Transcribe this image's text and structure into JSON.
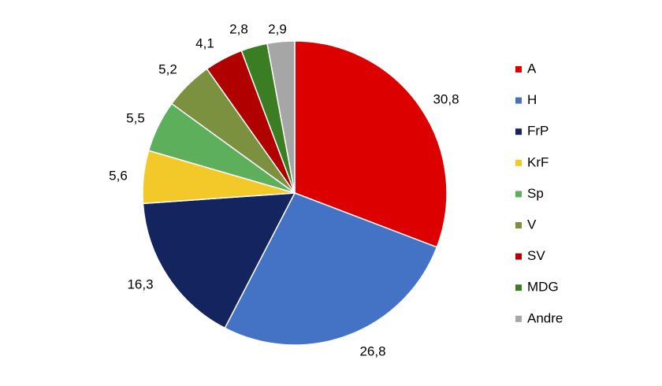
{
  "chart_data": {
    "type": "pie",
    "title": "",
    "start_angle": "12 o'clock, clockwise",
    "legend": "right",
    "slices": [
      {
        "label": "A",
        "value": 30.8,
        "display": "30,8",
        "color": "#DD0000"
      },
      {
        "label": "H",
        "value": 26.8,
        "display": "26,8",
        "color": "#4472C4"
      },
      {
        "label": "FrP",
        "value": 16.3,
        "display": "16,3",
        "color": "#14245E"
      },
      {
        "label": "KrF",
        "value": 5.6,
        "display": "5,6",
        "color": "#F2C928"
      },
      {
        "label": "Sp",
        "value": 5.5,
        "display": "5,5",
        "color": "#5DAF5C"
      },
      {
        "label": "V",
        "value": 5.2,
        "display": "5,2",
        "color": "#7C9140"
      },
      {
        "label": "SV",
        "value": 4.1,
        "display": "4,1",
        "color": "#B10000"
      },
      {
        "label": "MDG",
        "value": 2.8,
        "display": "2,8",
        "color": "#3A7D22"
      },
      {
        "label": "Andre",
        "value": 2.9,
        "display": "2,9",
        "color": "#A6A6A6"
      }
    ]
  }
}
